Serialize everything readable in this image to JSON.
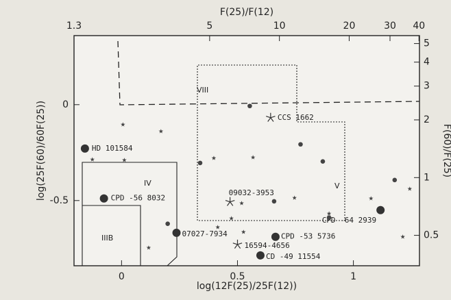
{
  "chart_data": {
    "type": "scatter",
    "x_label": "log(12F(25)/25F(12))",
    "y_label": "log(25F(60)/60F(25))",
    "x2_label": "F(25)/F(12)",
    "y2_label": "F(60)/F(25)",
    "xlim": [
      -0.205,
      1.285
    ],
    "ylim": [
      -0.84,
      0.36
    ],
    "xticks": [
      0,
      0.5,
      1
    ],
    "yticks": [
      0,
      -0.5
    ],
    "x2lim": [
      1.3,
      40.2
    ],
    "x2scale": "log",
    "x2ticks": [
      1.3,
      5,
      10,
      20,
      30,
      40
    ],
    "y2lim": [
      0.347,
      5.5
    ],
    "y2scale": "log",
    "y2ticks": [
      0.5,
      1,
      2,
      3,
      4,
      5
    ],
    "regions": [
      "VIII",
      "IV",
      "V",
      "IIIB"
    ],
    "series": [
      {
        "marker": "large-circle",
        "color": "#333333",
        "x": [
          -0.158,
          -0.076,
          0.237,
          0.664,
          0.599,
          1.117
        ],
        "values": [
          -0.229,
          -0.489,
          -0.668,
          -0.689,
          -0.786,
          -0.55
        ],
        "labels": [
          "HD 101584",
          "CPD -56 8032",
          "07027-7934",
          "CPD -53 5736",
          "CD -49 11554",
          "CPD -64 2939"
        ]
      },
      {
        "marker": "large-star",
        "color": "#333333",
        "x": [
          0.643,
          0.468,
          0.5
        ],
        "values": [
          -0.068,
          -0.507,
          -0.729
        ],
        "labels": [
          "CCS 1662",
          "09032-3953",
          "16594-4656"
        ]
      },
      {
        "marker": "dot",
        "color": "#444444",
        "x": [
          0.553,
          0.339,
          0.772,
          0.658,
          0.868,
          0.895,
          0.199,
          1.178
        ],
        "values": [
          -0.007,
          -0.304,
          -0.207,
          -0.504,
          -0.296,
          -0.589,
          -0.621,
          -0.393
        ]
      },
      {
        "marker": "small-star",
        "color": "#444444",
        "x": [
          0.006,
          0.17,
          -0.126,
          0.012,
          0.398,
          0.567,
          0.518,
          0.746,
          0.474,
          0.415,
          0.526,
          0.895,
          1.076,
          1.243,
          1.213,
          0.117
        ],
        "values": [
          -0.104,
          -0.139,
          -0.286,
          -0.289,
          -0.279,
          -0.275,
          -0.514,
          -0.486,
          -0.593,
          -0.639,
          -0.664,
          -0.568,
          -0.489,
          -0.439,
          -0.689,
          -0.746
        ]
      }
    ]
  }
}
